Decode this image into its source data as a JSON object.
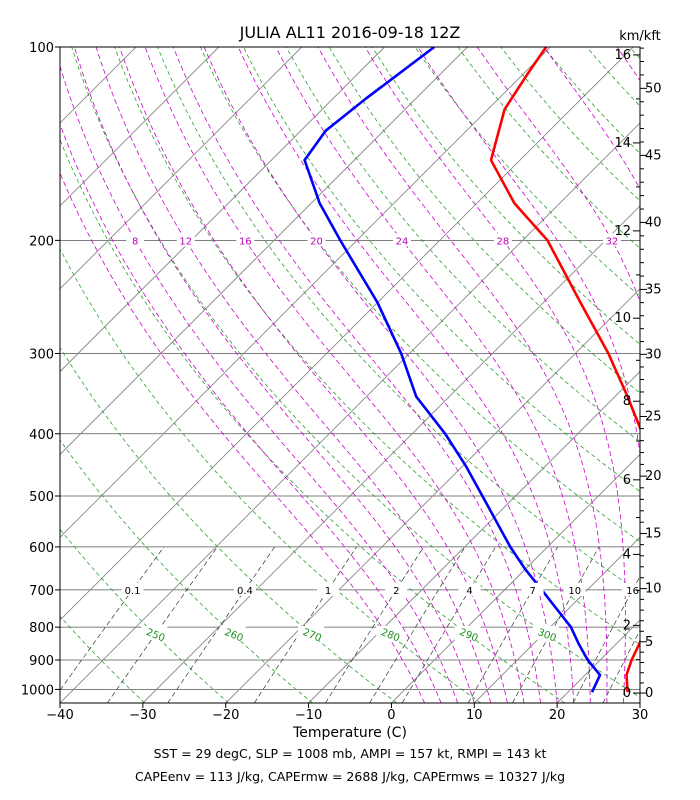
{
  "title": "JULIA AL11 2016-09-18 12Z",
  "xlabel": "Temperature (C)",
  "right_axis_label": "km/kft",
  "footer": {
    "line1": "SST = 29 degC, SLP = 1008 mb, AMPI = 157 kt, RMPI = 143 kt",
    "line2": "CAPEenv = 113 J/kg, CAPErmw = 2688 J/kg, CAPErmws = 10327 J/kg"
  },
  "chart_data": {
    "type": "line",
    "title": "JULIA AL11 2016-09-18 12Z",
    "xlabel": "Temperature (C)",
    "ylabel": "",
    "xlim": [
      -40,
      30
    ],
    "ylim_hPa": [
      1050,
      100
    ],
    "y_scale": "log",
    "x_ticks": [
      -40,
      -30,
      -20,
      -10,
      0,
      10,
      20,
      30
    ],
    "pressure_ticks": [
      100,
      200,
      300,
      400,
      500,
      600,
      700,
      800,
      900,
      1000
    ],
    "km_ticks": [
      0,
      2,
      4,
      6,
      8,
      10,
      12,
      14,
      16
    ],
    "kft_ticks": [
      0,
      5,
      10,
      15,
      20,
      25,
      30,
      35,
      40,
      45,
      50
    ],
    "mixing_ratio_labels": [
      "0.1",
      "0.4",
      "1",
      "2",
      "4",
      "7",
      "10",
      "16"
    ],
    "dry_adiabat_labels": [
      "250",
      "260",
      "270",
      "280",
      "290",
      "300"
    ],
    "moist_adiabat_labels": [
      "8",
      "12",
      "16",
      "20",
      "24",
      "28",
      "32"
    ],
    "series": [
      {
        "kind": "temperature",
        "color": "#ff0000",
        "points": [
          {
            "p": 1010,
            "t": 27.2
          },
          {
            "p": 950,
            "t": 25.0
          },
          {
            "p": 900,
            "t": 23.8
          },
          {
            "p": 850,
            "t": 22.8
          },
          {
            "p": 800,
            "t": 21.6
          },
          {
            "p": 700,
            "t": 18.2
          },
          {
            "p": 600,
            "t": 13.7
          },
          {
            "p": 500,
            "t": 7.0
          },
          {
            "p": 450,
            "t": 3.0
          },
          {
            "p": 400,
            "t": -2.2
          },
          {
            "p": 350,
            "t": -8.5
          },
          {
            "p": 300,
            "t": -16.0
          },
          {
            "p": 250,
            "t": -25.5
          },
          {
            "p": 200,
            "t": -37.0
          },
          {
            "p": 175,
            "t": -45.5
          },
          {
            "p": 150,
            "t": -53.5
          },
          {
            "p": 125,
            "t": -58.0
          },
          {
            "p": 110,
            "t": -59.5
          },
          {
            "p": 100,
            "t": -60.5
          }
        ]
      },
      {
        "kind": "dewpoint",
        "color": "#0000ff",
        "points": [
          {
            "p": 1010,
            "t": 22.9
          },
          {
            "p": 950,
            "t": 21.8
          },
          {
            "p": 900,
            "t": 18.5
          },
          {
            "p": 850,
            "t": 15.5
          },
          {
            "p": 800,
            "t": 12.5
          },
          {
            "p": 700,
            "t": 4.5
          },
          {
            "p": 650,
            "t": 0.0
          },
          {
            "p": 600,
            "t": -4.5
          },
          {
            "p": 500,
            "t": -14.0
          },
          {
            "p": 450,
            "t": -19.5
          },
          {
            "p": 400,
            "t": -26.0
          },
          {
            "p": 350,
            "t": -34.0
          },
          {
            "p": 300,
            "t": -41.0
          },
          {
            "p": 250,
            "t": -50.0
          },
          {
            "p": 200,
            "t": -62.0
          },
          {
            "p": 175,
            "t": -69.0
          },
          {
            "p": 150,
            "t": -76.0
          },
          {
            "p": 135,
            "t": -77.0
          },
          {
            "p": 120,
            "t": -76.0
          },
          {
            "p": 100,
            "t": -74.0
          }
        ]
      }
    ],
    "grid": true,
    "legend": "none"
  }
}
